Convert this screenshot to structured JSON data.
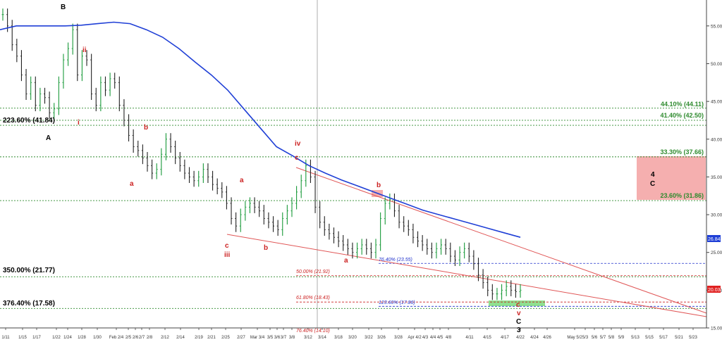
{
  "chart_data": {
    "type": "line",
    "title": "",
    "xlabel": "",
    "ylabel": "",
    "ylim": [
      15,
      57.5
    ],
    "y_ticks": [
      "55.00",
      "50.00",
      "45.00",
      "40.00",
      "35.00",
      "30.00",
      "25.00",
      "20.00",
      "15.00"
    ],
    "x_ticks": [
      "1/11",
      "1/15",
      "1/17",
      "1/22",
      "1/24",
      "1/28",
      "1/30",
      "Feb 2/4",
      "2/5",
      "2/6",
      "2/7",
      "2/8",
      "2/12",
      "2/14",
      "2/19",
      "2/21",
      "2/25",
      "2/27",
      "Mar 3/4",
      "3/5",
      "3/6",
      "3/7",
      "3/8",
      "3/12",
      "3/14",
      "3/18",
      "3/20",
      "3/22",
      "3/26",
      "3/28",
      "Apr 4/2",
      "4/3",
      "4/4",
      "4/5",
      "4/8",
      "4/11",
      "4/15",
      "4/17",
      "4/22",
      "4/24",
      "4/26",
      "May 5/2",
      "5/3",
      "5/6",
      "5/7",
      "5/8",
      "5/9",
      "5/13",
      "5/15",
      "5/17",
      "5/21",
      "5/23"
    ],
    "series": [
      {
        "kind": "price",
        "values": [
          56.5,
          55.0,
          52.5,
          51.0,
          48.5,
          46.0,
          47.5,
          44.5,
          46.0,
          45.5,
          43.5,
          44.0,
          47.5,
          50.5,
          52.0,
          54.5,
          48.5,
          51.0,
          50.5,
          46.0,
          44.5,
          47.5,
          46.5,
          48.0,
          47.5,
          44.5,
          42.5,
          40.5,
          39.0,
          38.5,
          37.5,
          36.5,
          35.5,
          36.0,
          38.0,
          40.0,
          39.0,
          37.5,
          36.5,
          35.5,
          35.0,
          34.5,
          35.0,
          36.0,
          35.0,
          34.0,
          33.5,
          33.0,
          31.5,
          29.5,
          28.5,
          30.0,
          31.0,
          31.5,
          31.0,
          30.5,
          29.5,
          29.0,
          28.5,
          28.0,
          29.5,
          30.5,
          31.5,
          33.0,
          34.5,
          36.5,
          35.0,
          31.0,
          29.0,
          28.0,
          27.5,
          27.0,
          26.5,
          26.0,
          25.5,
          25.0,
          25.5,
          26.0,
          25.5,
          25.0,
          26.0,
          29.5,
          31.5,
          32.0,
          30.5,
          29.0,
          28.5,
          28.0,
          27.0,
          26.5,
          26.0,
          25.5,
          25.0,
          25.5,
          26.0,
          25.5,
          24.5,
          24.0,
          25.0,
          25.5,
          24.5,
          23.5,
          22.0,
          21.0,
          20.0,
          19.5,
          19.5,
          20.0,
          20.5,
          20.0,
          19.8,
          20.0
        ]
      },
      {
        "kind": "moving-average",
        "color": "#1f3fd6",
        "label": "26.84",
        "values": [
          54.5,
          55.0,
          55.0,
          55.0,
          55.0,
          55.1,
          55.3,
          55.5,
          55.3,
          54.5,
          53.5,
          52.0,
          50.2,
          48.5,
          46.5,
          44.0,
          41.5,
          39.0,
          37.8,
          36.5,
          35.5,
          34.6,
          33.8,
          33.0,
          32.2,
          31.4,
          30.6,
          30.0,
          29.4,
          28.8,
          28.2,
          27.6,
          27.0
        ]
      }
    ],
    "current_price_label": "20.03"
  },
  "levels": [
    {
      "label": "44.10% (44.11)",
      "value": 44.11,
      "color": "#2e8b2e",
      "side": "right"
    },
    {
      "label": "41.40% (42.50)",
      "value": 42.5,
      "color": "#2e8b2e",
      "side": "right"
    },
    {
      "label": "223.60% (41.84)",
      "value": 41.84,
      "color": "#000000",
      "side": "left"
    },
    {
      "label": "33.30% (37.66)",
      "value": 37.66,
      "color": "#2e8b2e",
      "side": "right"
    },
    {
      "label": "23.60% (31.86)",
      "value": 31.86,
      "color": "#2e8b2e",
      "side": "right"
    },
    {
      "label": "350.00% (21.77)",
      "value": 21.77,
      "color": "#000000",
      "side": "left"
    },
    {
      "label": "376.40% (17.58)",
      "value": 17.58,
      "color": "#000000",
      "side": "left"
    }
  ],
  "fib_labels": [
    {
      "label": "76.40% (23.55)",
      "color": "#2233cc"
    },
    {
      "label": "50.00% (21.92)",
      "color": "#cc2222"
    },
    {
      "label": "61.80% (18.43)",
      "color": "#cc2222"
    },
    {
      "label": "123.60% (17.86)",
      "color": "#2233cc"
    },
    {
      "label": "76.40% (14.10)",
      "color": "#cc2222"
    }
  ],
  "waves": [
    {
      "label": "B",
      "color": "#000000"
    },
    {
      "label": "ii",
      "color": "#cc2222"
    },
    {
      "label": "i",
      "color": "#cc2222"
    },
    {
      "label": "A",
      "color": "#000000"
    },
    {
      "label": "b",
      "color": "#cc2222"
    },
    {
      "label": "a",
      "color": "#cc2222"
    },
    {
      "label": "iv",
      "color": "#cc2222"
    },
    {
      "label": "c",
      "color": "#cc2222"
    },
    {
      "label": "a",
      "color": "#cc2222"
    },
    {
      "label": "c",
      "color": "#cc2222"
    },
    {
      "label": "iii",
      "color": "#cc2222"
    },
    {
      "label": "b",
      "color": "#cc2222"
    },
    {
      "label": "b",
      "color": "#cc2222"
    },
    {
      "label": "a",
      "color": "#cc2222"
    },
    {
      "label": "c",
      "color": "#cc2222"
    },
    {
      "label": "v",
      "color": "#cc2222"
    },
    {
      "label": "C",
      "color": "#000000"
    },
    {
      "label": "3",
      "color": "#000000"
    },
    {
      "label": "4",
      "color": "#000000"
    },
    {
      "label": "C",
      "color": "#000000"
    }
  ]
}
